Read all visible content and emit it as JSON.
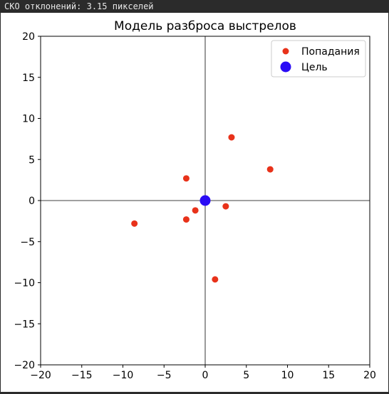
{
  "status": {
    "text": "СКО отклонений: 3.15 пикселей"
  },
  "chart_data": {
    "type": "scatter",
    "title": "Модель разброса выстрелов",
    "xlabel": "",
    "ylabel": "",
    "xlim": [
      -20,
      20
    ],
    "ylim": [
      -20,
      20
    ],
    "x_ticks": [
      -20,
      -15,
      -10,
      -5,
      0,
      5,
      10,
      15,
      20
    ],
    "y_ticks": [
      -20,
      -15,
      -10,
      -5,
      0,
      5,
      10,
      15,
      20
    ],
    "x_tick_labels": [
      "−20",
      "−15",
      "−10",
      "−5",
      "0",
      "5",
      "10",
      "15",
      "20"
    ],
    "y_tick_labels": [
      "−20",
      "−15",
      "−10",
      "−5",
      "0",
      "5",
      "10",
      "15",
      "20"
    ],
    "grid": false,
    "axis_lines_through_origin": true,
    "legend_position": "top-right",
    "series": [
      {
        "name": "Попадания",
        "color": "#e8321a",
        "marker": "circle",
        "points": [
          {
            "x": 3.2,
            "y": 7.7
          },
          {
            "x": 7.9,
            "y": 3.8
          },
          {
            "x": -2.3,
            "y": 2.7
          },
          {
            "x": 2.5,
            "y": -0.7
          },
          {
            "x": -1.2,
            "y": -1.2
          },
          {
            "x": -2.3,
            "y": -2.3
          },
          {
            "x": -8.6,
            "y": -2.8
          },
          {
            "x": 1.2,
            "y": -9.6
          }
        ]
      },
      {
        "name": "Цель",
        "color": "#2a0cf5",
        "marker": "circle-large",
        "points": [
          {
            "x": 0,
            "y": 0
          }
        ]
      }
    ]
  }
}
